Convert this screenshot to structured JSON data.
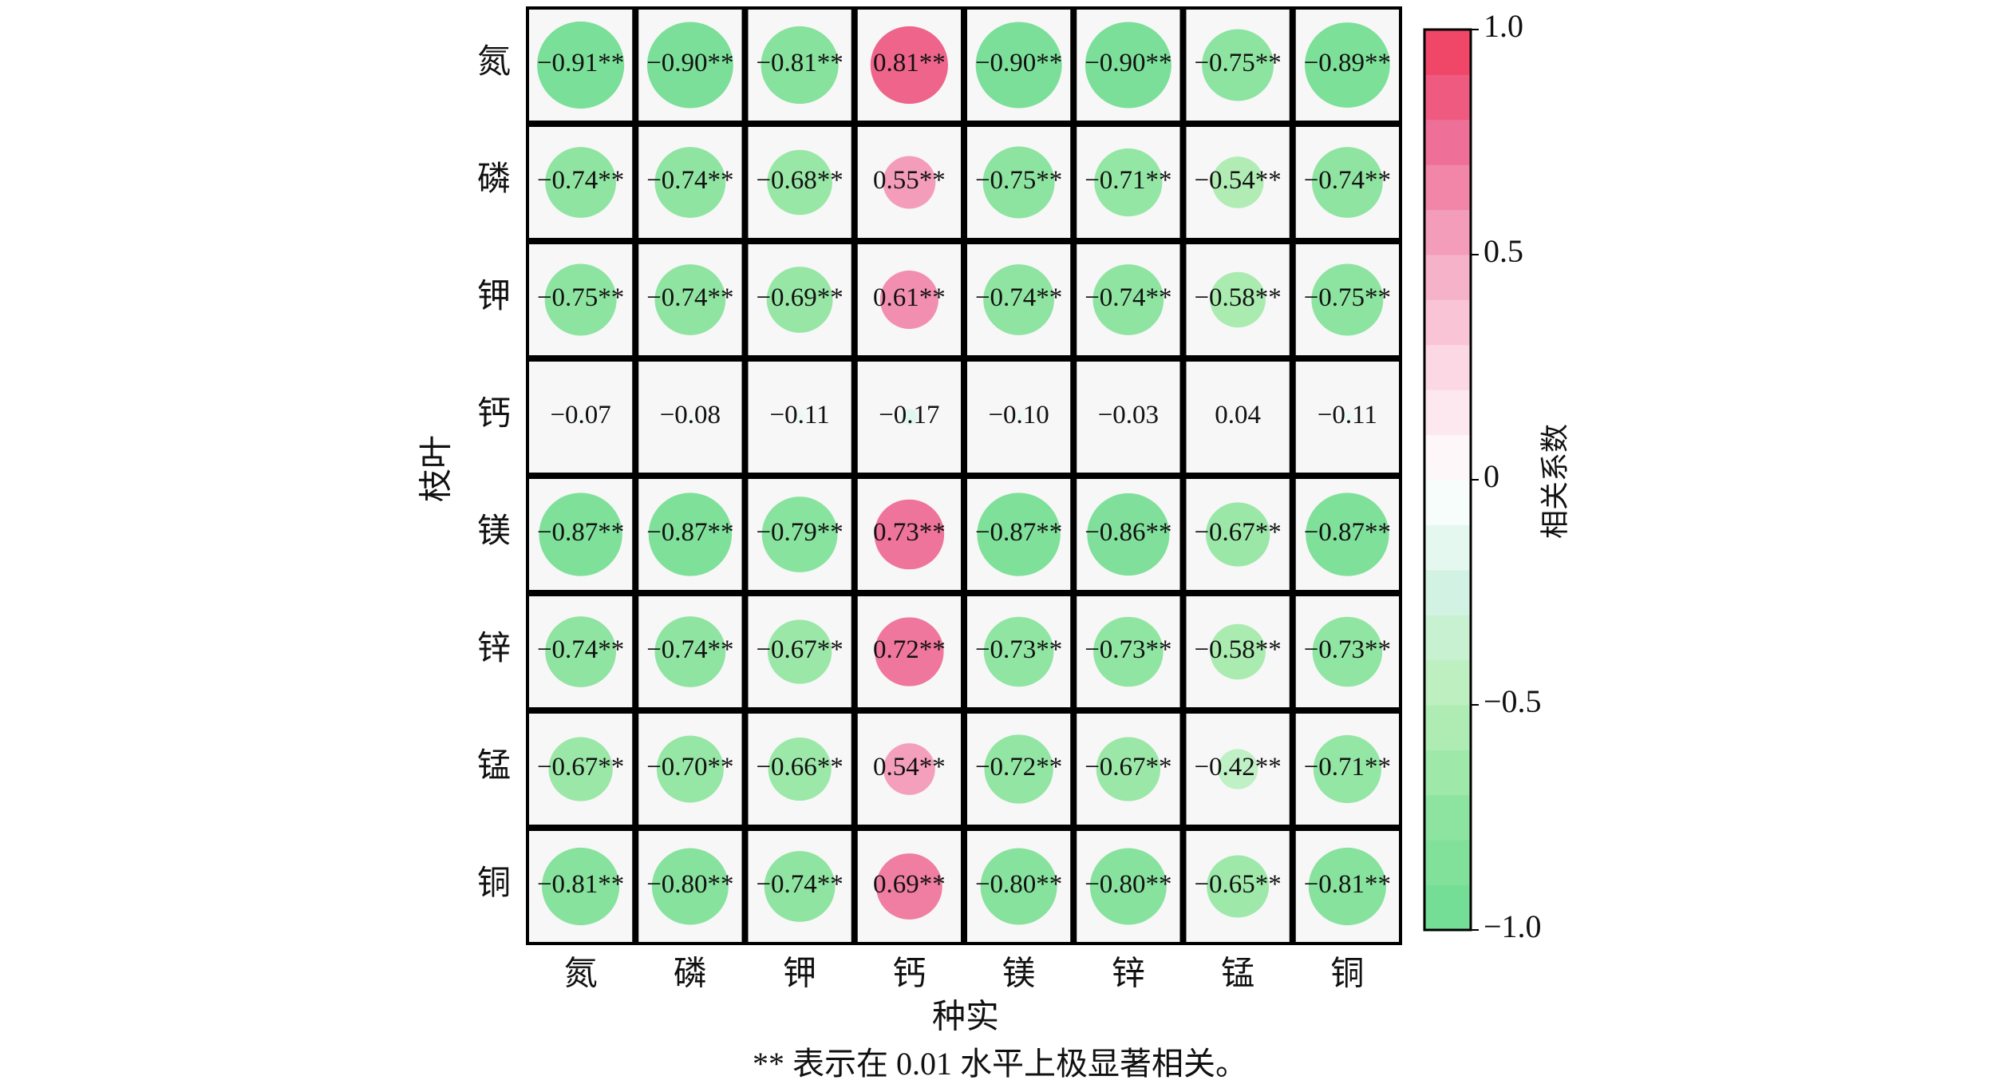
{
  "chart_data": {
    "type": "correlogram",
    "x_label": "种实",
    "y_label": "枝叶",
    "columns": [
      "氮",
      "磷",
      "钾",
      "钙",
      "镁",
      "锌",
      "锰",
      "铜"
    ],
    "rows": [
      "氮",
      "磷",
      "钾",
      "钙",
      "镁",
      "锌",
      "锰",
      "铜"
    ],
    "values": [
      [
        -0.91,
        -0.9,
        -0.81,
        0.81,
        -0.9,
        -0.9,
        -0.75,
        -0.89
      ],
      [
        -0.74,
        -0.74,
        -0.68,
        0.55,
        -0.75,
        -0.71,
        -0.54,
        -0.74
      ],
      [
        -0.75,
        -0.74,
        -0.69,
        0.61,
        -0.74,
        -0.74,
        -0.58,
        -0.75
      ],
      [
        -0.07,
        -0.08,
        -0.11,
        -0.17,
        -0.1,
        -0.03,
        0.04,
        -0.11
      ],
      [
        -0.87,
        -0.87,
        -0.79,
        0.73,
        -0.87,
        -0.86,
        -0.67,
        -0.87
      ],
      [
        -0.74,
        -0.74,
        -0.67,
        0.72,
        -0.73,
        -0.73,
        -0.58,
        -0.73
      ],
      [
        -0.67,
        -0.7,
        -0.66,
        0.54,
        -0.72,
        -0.67,
        -0.42,
        -0.71
      ],
      [
        -0.81,
        -0.8,
        -0.74,
        0.69,
        -0.8,
        -0.8,
        -0.65,
        -0.81
      ]
    ],
    "value_labels": [
      [
        "−0.91**",
        "−0.90**",
        "−0.81**",
        "0.81**",
        "−0.90**",
        "−0.90**",
        "−0.75**",
        "−0.89**"
      ],
      [
        "−0.74**",
        "−0.74**",
        "−0.68**",
        "0.55**",
        "−0.75**",
        "−0.71**",
        "−0.54**",
        "−0.74**"
      ],
      [
        "−0.75**",
        "−0.74**",
        "−0.69**",
        "0.61**",
        "−0.74**",
        "−0.74**",
        "−0.58**",
        "−0.75**"
      ],
      [
        "−0.07",
        "−0.08",
        "−0.11",
        "−0.17",
        "−0.10",
        "−0.03",
        "0.04",
        "−0.11"
      ],
      [
        "−0.87**",
        "−0.87**",
        "−0.79**",
        "0.73**",
        "−0.87**",
        "−0.86**",
        "−0.67**",
        "−0.87**"
      ],
      [
        "−0.74**",
        "−0.74**",
        "−0.67**",
        "0.72**",
        "−0.73**",
        "−0.73**",
        "−0.58**",
        "−0.73**"
      ],
      [
        "−0.67**",
        "−0.70**",
        "−0.66**",
        "0.54**",
        "−0.72**",
        "−0.67**",
        "−0.42**",
        "−0.71**"
      ],
      [
        "−0.81**",
        "−0.80**",
        "−0.74**",
        "0.69**",
        "−0.80**",
        "−0.80**",
        "−0.65**",
        "−0.81**"
      ]
    ],
    "colorbar_label": "相关系数",
    "clim": [
      -1,
      1
    ],
    "cticks": [
      {
        "value": 1,
        "label": "1.0"
      },
      0.5,
      0,
      {
        "value": -0.5,
        "label": "−0.5"
      },
      {
        "value": -1,
        "label": "−1.0"
      }
    ],
    "colormap": [
      "#6fdc94",
      "#8de4a0",
      "#b8eeb8",
      "#d2f3e4",
      "#ffffff",
      "#fcd8e4",
      "#f5a8c2",
      "#ee7098",
      "#f03c5c"
    ],
    "footnote": "** 表示在 0.01 水平上极显著相关。"
  }
}
